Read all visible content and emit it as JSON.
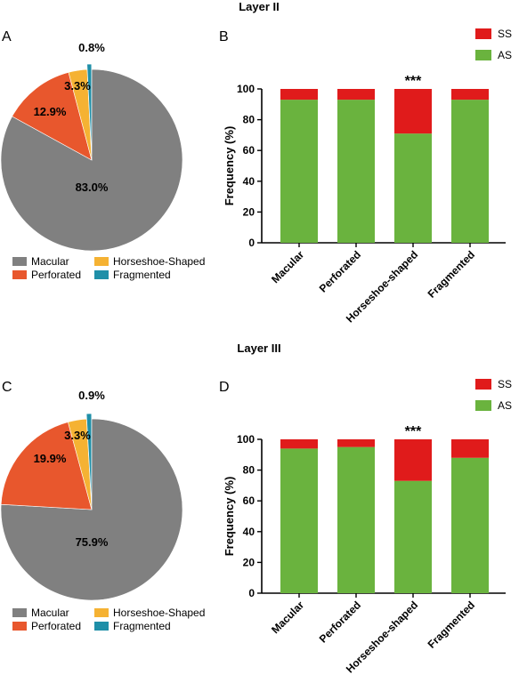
{
  "colors": {
    "Macular": "#808080",
    "Perforated": "#e8572d",
    "Horseshoe-Shaped": "#f5b233",
    "Fragmented": "#1f8fa8",
    "SS": "#e01b1b",
    "AS": "#6ab33e"
  },
  "sections": [
    {
      "title": "Layer II",
      "pie_panel": "A",
      "bar_panel": "B"
    },
    {
      "title": "Layer III",
      "pie_panel": "C",
      "bar_panel": "D"
    }
  ],
  "chart_data": [
    {
      "type": "pie",
      "section": "Layer II",
      "categories": [
        "Macular",
        "Perforated",
        "Horseshoe-Shaped",
        "Fragmented"
      ],
      "values": [
        83.0,
        12.9,
        3.3,
        0.8
      ],
      "labels": [
        "83.0%",
        "12.9%",
        "3.3%",
        "0.8%"
      ],
      "legend": [
        "Macular",
        "Perforated",
        "Horseshoe-Shaped",
        "Fragmented"
      ],
      "legend_position": "bottom"
    },
    {
      "type": "bar",
      "stacked": true,
      "section": "Layer II",
      "categories": [
        "Macular",
        "Perforated",
        "Horseshoe-shaped",
        "Fragmented"
      ],
      "series": [
        {
          "name": "AS",
          "values": [
            93,
            93,
            71,
            93
          ]
        },
        {
          "name": "SS",
          "values": [
            7,
            7,
            29,
            7
          ]
        }
      ],
      "ylabel": "Frequency (%)",
      "ylim": [
        0,
        100
      ],
      "yticks": [
        "0",
        "20",
        "40",
        "60",
        "80",
        "100"
      ],
      "annotation": {
        "category": "Horseshoe-shaped",
        "text": "***"
      },
      "legend": [
        "SS",
        "AS"
      ],
      "legend_position": "top-right",
      "grid": false
    },
    {
      "type": "pie",
      "section": "Layer III",
      "categories": [
        "Macular",
        "Perforated",
        "Horseshoe-Shaped",
        "Fragmented"
      ],
      "values": [
        75.9,
        19.9,
        3.3,
        0.9
      ],
      "labels": [
        "75.9%",
        "19.9%",
        "3.3%",
        "0.9%"
      ],
      "legend": [
        "Macular",
        "Perforated",
        "Horseshoe-Shaped",
        "Fragmented"
      ],
      "legend_position": "bottom"
    },
    {
      "type": "bar",
      "stacked": true,
      "section": "Layer III",
      "categories": [
        "Macular",
        "Perforated",
        "Horseshoe-shaped",
        "Fragmented"
      ],
      "series": [
        {
          "name": "AS",
          "values": [
            94,
            95,
            73,
            88
          ]
        },
        {
          "name": "SS",
          "values": [
            6,
            5,
            27,
            12
          ]
        }
      ],
      "ylabel": "Frequency (%)",
      "ylim": [
        0,
        100
      ],
      "yticks": [
        "0",
        "20",
        "40",
        "60",
        "80",
        "100"
      ],
      "annotation": {
        "category": "Horseshoe-shaped",
        "text": "***"
      },
      "legend": [
        "SS",
        "AS"
      ],
      "legend_position": "top-right",
      "grid": false
    }
  ]
}
